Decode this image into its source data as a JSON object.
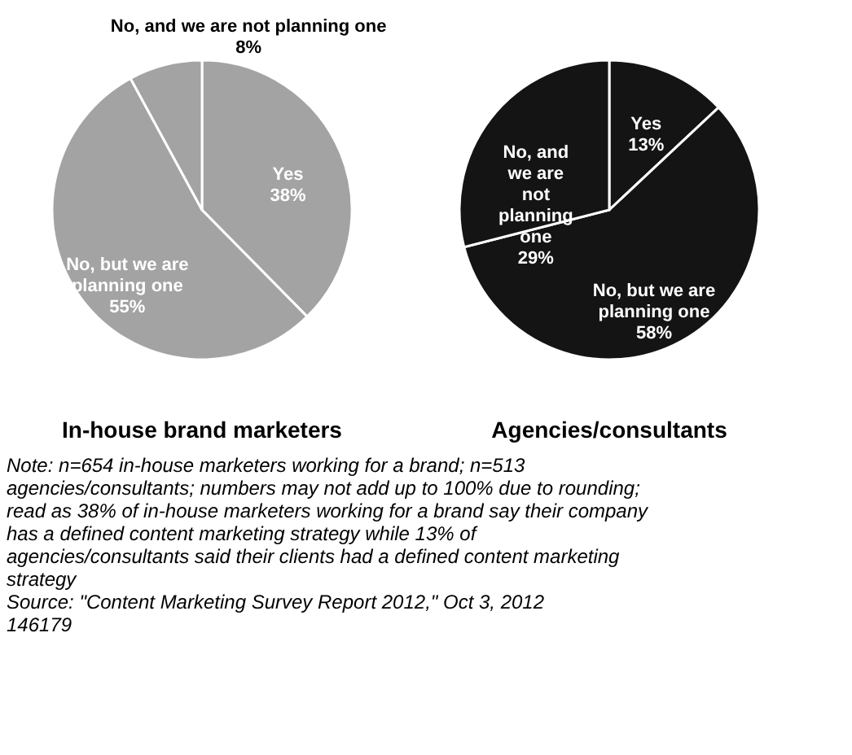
{
  "chart_data": [
    {
      "type": "pie",
      "title": "In-house brand marketers",
      "categories": [
        "Yes",
        "No, but we are planning one",
        "No, and we are not planning one"
      ],
      "values": [
        38,
        55,
        8
      ],
      "colors": [
        "#a3a3a3",
        "#a3a3a3",
        "#a3a3a3"
      ],
      "value_labels": [
        "38%",
        "55%",
        "8%"
      ]
    },
    {
      "type": "pie",
      "title": "Agencies/consultants",
      "categories": [
        "Yes",
        "No, but we are planning one",
        "No, and we are not planning one"
      ],
      "values": [
        13,
        58,
        29
      ],
      "colors": [
        "#141414",
        "#141414",
        "#141414"
      ],
      "value_labels": [
        "13%",
        "58%",
        "29%"
      ],
      "annotations": [
        "Note: n=654 in-house marketers working for a brand; n=513 agencies/consultants; numbers may not add up to 100% due to rounding; read as 38% of in-house marketers working for a brand say their company has a defined content marketing strategy while 13% of agencies/consultants said their clients had a defined content marketing strategy",
        "Source: \"Content Marketing Survey Report 2012,\" Oct 3, 2012",
        "146179"
      ]
    }
  ]
}
